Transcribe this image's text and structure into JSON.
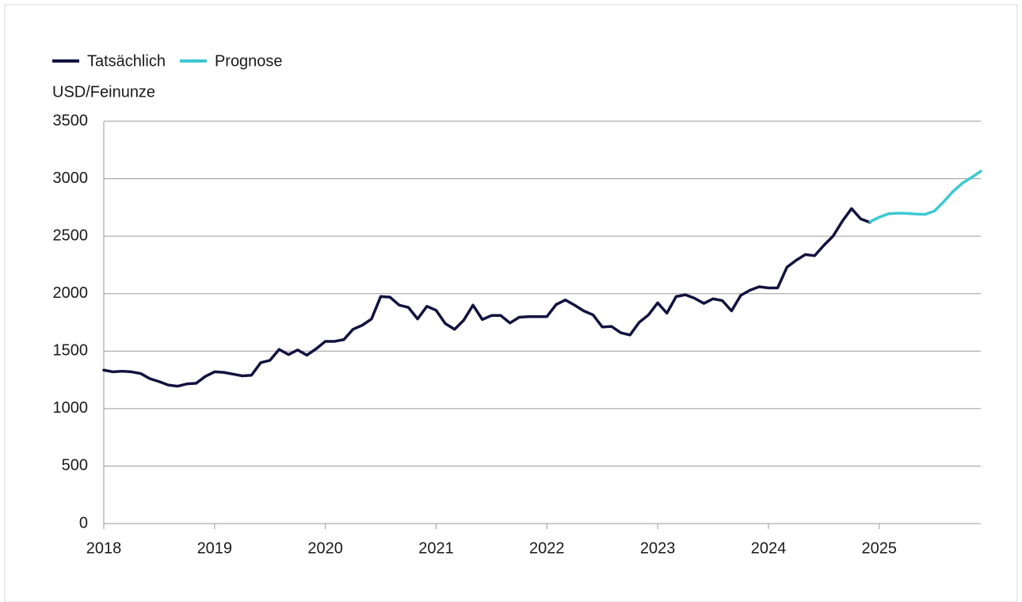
{
  "chart_data": {
    "type": "line",
    "y_label": "USD/Feinunze",
    "xlim": [
      2018,
      2025.917
    ],
    "xticks": [
      2018,
      2019,
      2020,
      2021,
      2022,
      2023,
      2024,
      2025
    ],
    "ylim": [
      0,
      3500
    ],
    "yticks": [
      0,
      500,
      1000,
      1500,
      2000,
      2500,
      3000,
      3500
    ],
    "grid": true,
    "legend": "top-left",
    "series": [
      {
        "name": "Tatsächlich",
        "color": "#12123f",
        "x": [
          2018,
          2018.083,
          2018.167,
          2018.25,
          2018.333,
          2018.417,
          2018.5,
          2018.583,
          2018.667,
          2018.75,
          2018.833,
          2018.917,
          2019,
          2019.083,
          2019.167,
          2019.25,
          2019.333,
          2019.417,
          2019.5,
          2019.583,
          2019.667,
          2019.75,
          2019.833,
          2019.917,
          2020,
          2020.083,
          2020.167,
          2020.25,
          2020.333,
          2020.417,
          2020.5,
          2020.583,
          2020.667,
          2020.75,
          2020.833,
          2020.917,
          2021,
          2021.083,
          2021.167,
          2021.25,
          2021.333,
          2021.417,
          2021.5,
          2021.583,
          2021.667,
          2021.75,
          2021.833,
          2021.917,
          2022,
          2022.083,
          2022.167,
          2022.25,
          2022.333,
          2022.417,
          2022.5,
          2022.583,
          2022.667,
          2022.75,
          2022.833,
          2022.917,
          2023,
          2023.083,
          2023.167,
          2023.25,
          2023.333,
          2023.417,
          2023.5,
          2023.583,
          2023.667,
          2023.75,
          2023.833,
          2023.917,
          2024,
          2024.083,
          2024.167,
          2024.25,
          2024.333,
          2024.417,
          2024.5,
          2024.583,
          2024.667,
          2024.75,
          2024.833,
          2024.917
        ],
        "values": [
          1335,
          1320,
          1325,
          1320,
          1305,
          1260,
          1235,
          1205,
          1195,
          1215,
          1220,
          1280,
          1320,
          1315,
          1300,
          1285,
          1290,
          1400,
          1420,
          1515,
          1470,
          1510,
          1465,
          1520,
          1585,
          1585,
          1600,
          1690,
          1725,
          1780,
          1975,
          1970,
          1900,
          1880,
          1780,
          1890,
          1855,
          1740,
          1690,
          1770,
          1900,
          1775,
          1810,
          1810,
          1745,
          1795,
          1800,
          1800,
          1800,
          1905,
          1945,
          1900,
          1850,
          1815,
          1710,
          1715,
          1660,
          1640,
          1750,
          1815,
          1920,
          1830,
          1975,
          1990,
          1960,
          1915,
          1955,
          1940,
          1850,
          1985,
          2030,
          2060,
          2050,
          2050,
          2230,
          2290,
          2340,
          2330,
          2420,
          2500,
          2630,
          2740,
          2650,
          2620
        ]
      },
      {
        "name": "Prognose",
        "color": "#3ec9d2",
        "x": [
          2024.917,
          2025,
          2025.083,
          2025.167,
          2025.25,
          2025.333,
          2025.417,
          2025.5,
          2025.583,
          2025.667,
          2025.75,
          2025.833,
          2025.917
        ],
        "values": [
          2625,
          2665,
          2695,
          2700,
          2698,
          2692,
          2690,
          2720,
          2800,
          2890,
          2960,
          3010,
          3065
        ]
      }
    ]
  }
}
